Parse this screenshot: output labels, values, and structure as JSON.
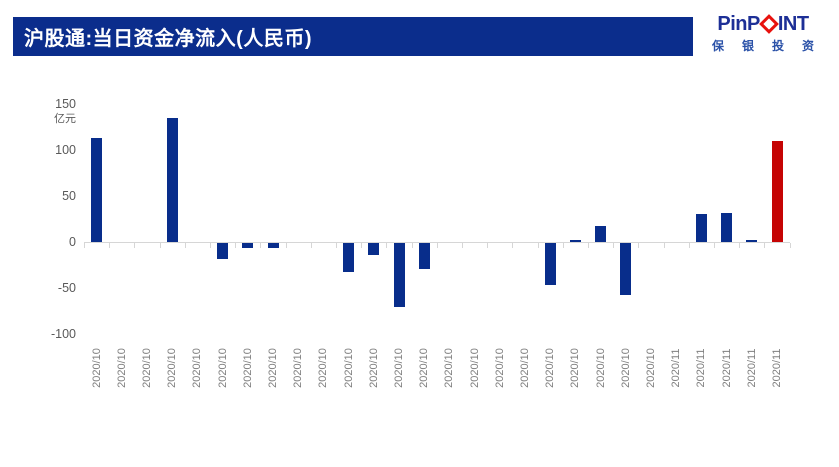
{
  "header": {
    "title": "沪股通:当日资金净流入(人民币)"
  },
  "logo": {
    "brand_pre": "PinP",
    "brand_post": "INT",
    "diamond_icon": "red-diamond",
    "subtext_chars": [
      "保",
      "银",
      "投",
      "资"
    ],
    "colors": {
      "wordmark": "#1d2f96",
      "diamond": "#e8120e",
      "subtext": "#2b52a8"
    }
  },
  "chart_data": {
    "type": "bar",
    "title": "沪股通:当日资金净流入(人民币)",
    "unit_label": "亿元",
    "categories": [
      "2020/10",
      "2020/10",
      "2020/10",
      "2020/10",
      "2020/10",
      "2020/10",
      "2020/10",
      "2020/10",
      "2020/10",
      "2020/10",
      "2020/10",
      "2020/10",
      "2020/10",
      "2020/10",
      "2020/10",
      "2020/10",
      "2020/10",
      "2020/10",
      "2020/10",
      "2020/10",
      "2020/10",
      "2020/10",
      "2020/10",
      "2020/11",
      "2020/11",
      "2020/11",
      "2020/11",
      "2020/11"
    ],
    "values": [
      113,
      0,
      0,
      135,
      0,
      -17,
      -5,
      -5,
      0,
      0,
      -32,
      -13,
      -70,
      -28,
      0,
      0,
      0,
      0,
      -46,
      2,
      17,
      -57,
      0,
      0,
      30,
      31,
      2,
      110
    ],
    "highlight_index": 27,
    "y_ticks": [
      150,
      100,
      50,
      0,
      -50,
      -100
    ],
    "ylim": [
      -100,
      150
    ],
    "grid": false,
    "legend": false,
    "colors": {
      "bar_default": "#082d8b",
      "bar_highlight": "#c50404",
      "header_bg": "#0b2d8c",
      "axis_line": "#d6d6d6",
      "y_label": "#595959",
      "x_label": "#7f7f7f"
    }
  }
}
